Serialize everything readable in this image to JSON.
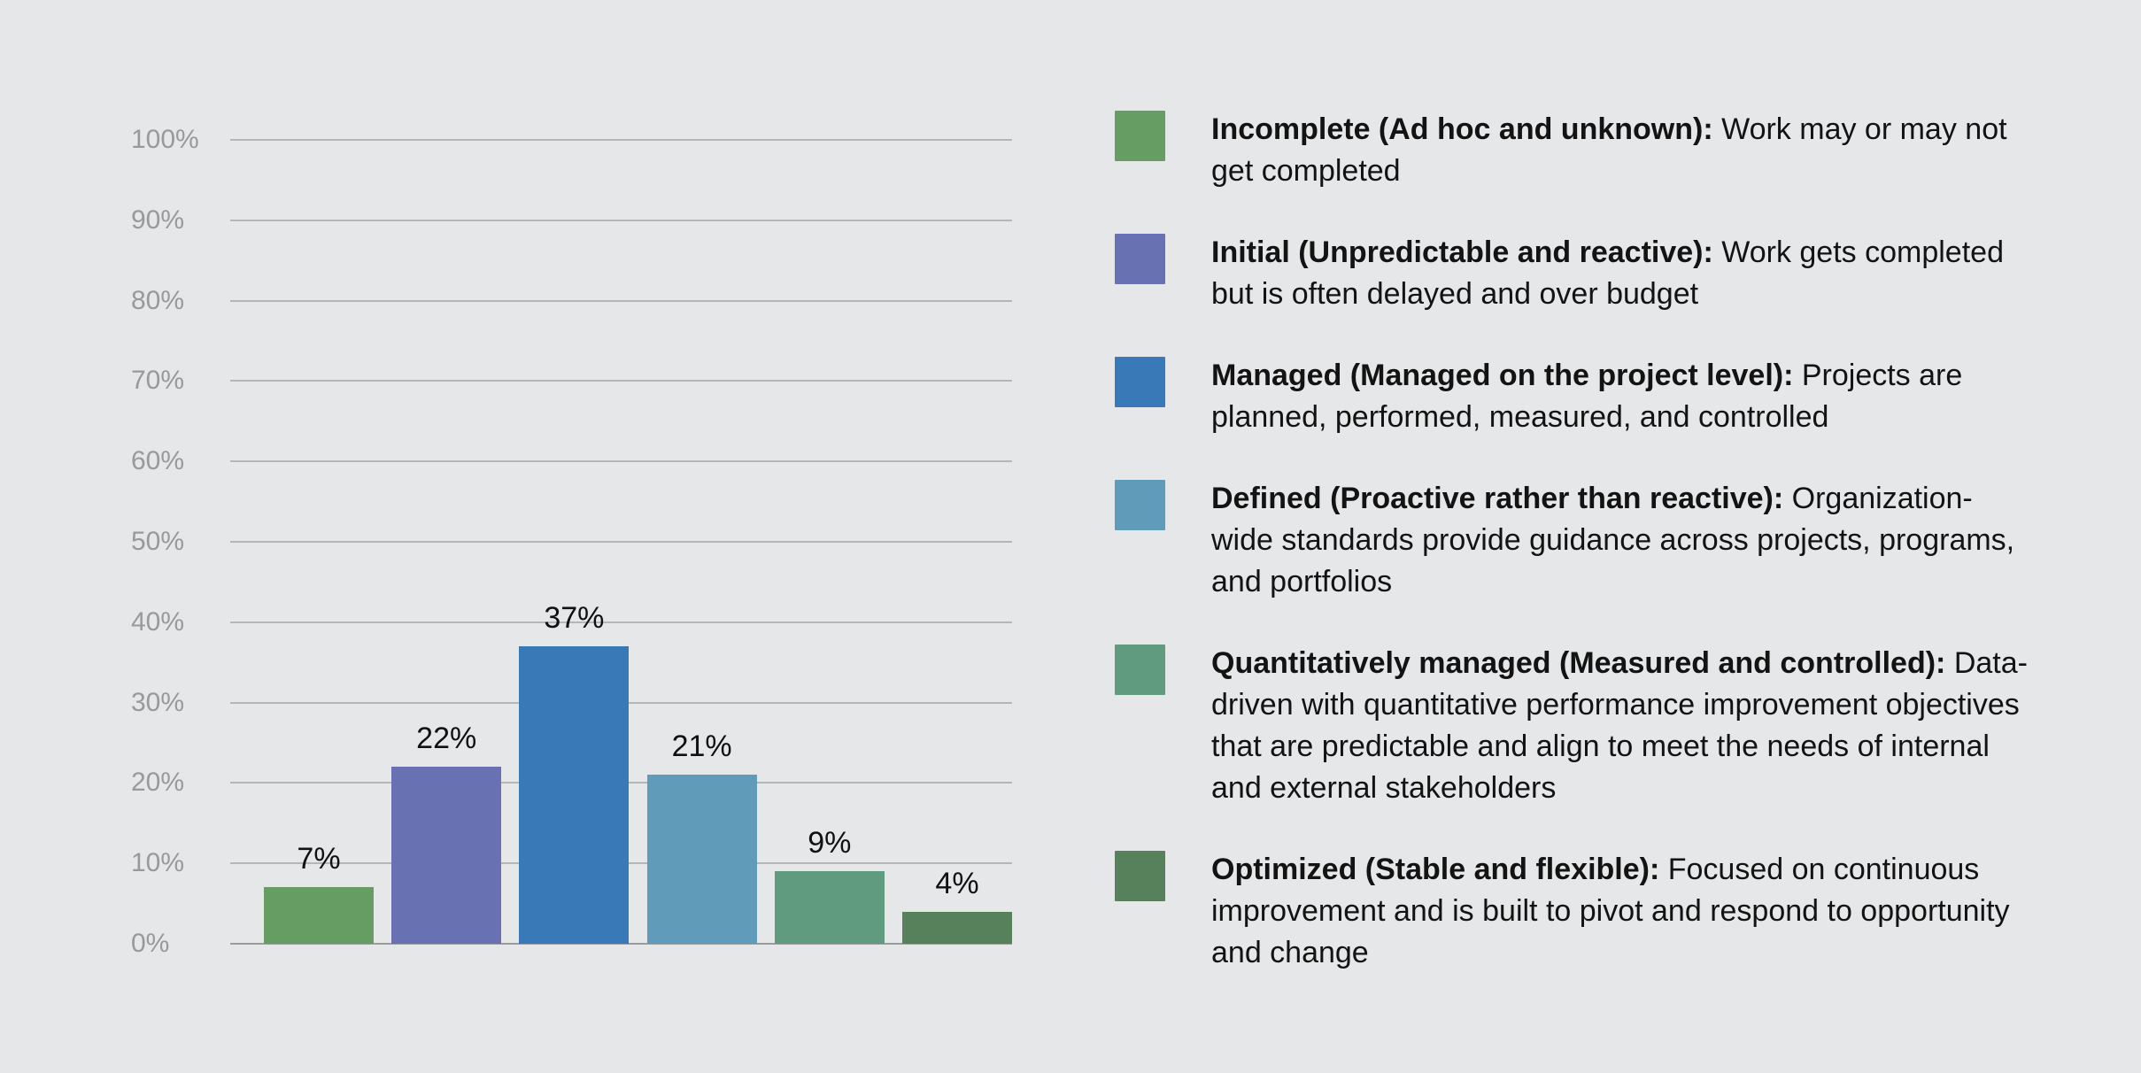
{
  "background": "#e6e7e8",
  "chart_data": {
    "type": "bar",
    "categories": [
      "Incomplete (Ad hoc and unknown)",
      "Initial (Unpredictable and reactive)",
      "Managed (Managed on the project level)",
      "Defined (Proactive rather than reactive)",
      "Quantitatively managed (Measured and controlled)",
      "Optimized (Stable and flexible)"
    ],
    "values": [
      7,
      22,
      37,
      21,
      9,
      4
    ],
    "bar_labels": [
      "7%",
      "22%",
      "37%",
      "21%",
      "9%",
      "4%"
    ],
    "colors": [
      "#669d63",
      "#6872b2",
      "#3a79b7",
      "#609cba",
      "#609a7f",
      "#56815b"
    ],
    "title": "",
    "xlabel": "",
    "ylabel": "",
    "ylim": [
      0,
      100
    ],
    "ytick_step": 10,
    "ytick_labels": [
      "0%",
      "10%",
      "20%",
      "30%",
      "40%",
      "50%",
      "60%",
      "70%",
      "80%",
      "90%",
      "100%"
    ],
    "grid": true,
    "legend_position": "right",
    "gridline_color": "#b5b6b8",
    "baseline_color": "#9b9c9e",
    "tick_label_color": "#98999b",
    "value_label_color": "#111111"
  },
  "legend": {
    "items": [
      {
        "title": "Incomplete (Ad hoc and unknown):",
        "description": "Work may or may not get completed",
        "color": "#669d63"
      },
      {
        "title": "Initial (Unpredictable and reactive):",
        "description": "Work gets completed but is often delayed and over budget",
        "color": "#6872b2"
      },
      {
        "title": "Managed (Managed on the project level):",
        "description": "Projects are planned, performed, measured, and controlled",
        "color": "#3a79b7"
      },
      {
        "title": "Defined (Proactive rather than reactive):",
        "description": "Organization-wide standards provide guidance across projects, programs, and portfolios",
        "color": "#609cba"
      },
      {
        "title": "Quantitatively managed (Measured and controlled):",
        "description": "Data-driven with quantitative performance improvement objectives that are predictable and align to meet the needs of internal and external stakeholders",
        "color": "#609a7f"
      },
      {
        "title": "Optimized (Stable and flexible):",
        "description": "Focused on continuous improvement and is built to pivot and respond to opportunity and change",
        "color": "#56815b"
      }
    ]
  }
}
